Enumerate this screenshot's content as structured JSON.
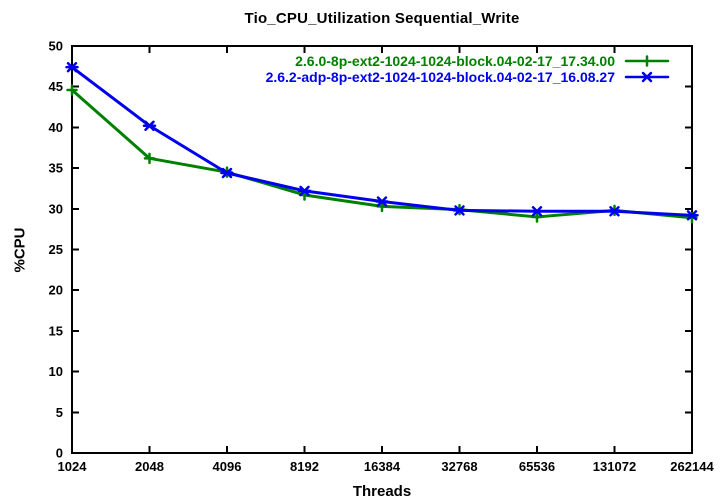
{
  "chart_data": {
    "type": "line",
    "title": "Tio_CPU_Utilization Sequential_Write",
    "xlabel": "Threads",
    "ylabel": "%CPU",
    "x_scale": "log2",
    "categories": [
      1024,
      2048,
      4096,
      8192,
      16384,
      32768,
      65536,
      131072,
      262144
    ],
    "x_tick_labels": [
      "1024",
      "2048",
      "4096",
      "8192",
      "16384",
      "32768",
      "65536",
      "131072",
      "262144"
    ],
    "ylim": [
      0,
      50
    ],
    "y_tick_step": 5,
    "y_tick_labels": [
      "0",
      "5",
      "10",
      "15",
      "20",
      "25",
      "30",
      "35",
      "40",
      "45",
      "50"
    ],
    "grid": false,
    "legend_position": "top-right-inside",
    "axis_color": "#000000",
    "series": [
      {
        "name": "2.6.0-8p-ext2-1024-1024-block.04-02-17_17.34.00",
        "color": "#008000",
        "marker": "plus",
        "values": [
          44.6,
          36.2,
          34.5,
          31.7,
          30.3,
          29.9,
          29.0,
          29.8,
          28.9
        ]
      },
      {
        "name": "2.6.2-adp-8p-ext2-1024-1024-block.04-02-17_16.08.27",
        "color": "#0000EE",
        "marker": "asterisk",
        "values": [
          47.4,
          40.2,
          34.4,
          32.2,
          30.9,
          29.8,
          29.7,
          29.7,
          29.2
        ]
      }
    ]
  }
}
